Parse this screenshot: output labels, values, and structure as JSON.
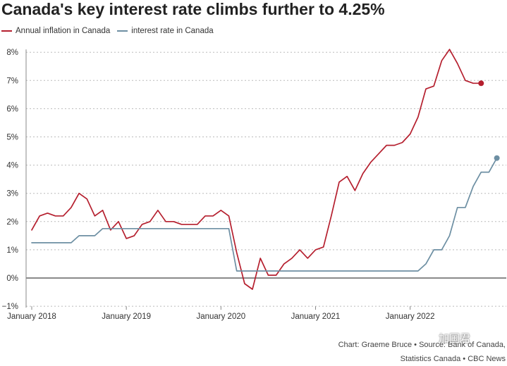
{
  "title": "Canada's key interest rate climbs further to 4.25%",
  "legend": [
    {
      "label": "Annual inflation in Canada",
      "color": "#b51f2e"
    },
    {
      "label": "interest rate in Canada",
      "color": "#6d8fa3"
    }
  ],
  "source": {
    "line1": "Chart: Graeme Bruce • Source: Bank of Canada,",
    "line2": "Statistics Canada • CBC News"
  },
  "watermark": "加国君",
  "chart_data": {
    "type": "line",
    "title": "Canada's key interest rate climbs further to 4.25%",
    "xlabel": "",
    "ylabel": "",
    "x_range": [
      "2018-01",
      "2022-12"
    ],
    "x_ticks": [
      "January 2018",
      "January 2019",
      "January 2020",
      "January 2021",
      "January 2022"
    ],
    "ylim": [
      -1,
      8
    ],
    "y_ticks": [
      "8%",
      "7%",
      "6%",
      "5%",
      "4%",
      "3%",
      "2%",
      "1%",
      "0%",
      "−1%"
    ],
    "grid": true,
    "legend_position": "top-left",
    "series": [
      {
        "name": "Annual inflation in Canada",
        "color": "#b51f2e",
        "end_marker": true,
        "x": [
          "2018-01",
          "2018-02",
          "2018-03",
          "2018-04",
          "2018-05",
          "2018-06",
          "2018-07",
          "2018-08",
          "2018-09",
          "2018-10",
          "2018-11",
          "2018-12",
          "2019-01",
          "2019-02",
          "2019-03",
          "2019-04",
          "2019-05",
          "2019-06",
          "2019-07",
          "2019-08",
          "2019-09",
          "2019-10",
          "2019-11",
          "2019-12",
          "2020-01",
          "2020-02",
          "2020-03",
          "2020-04",
          "2020-05",
          "2020-06",
          "2020-07",
          "2020-08",
          "2020-09",
          "2020-10",
          "2020-11",
          "2020-12",
          "2021-01",
          "2021-02",
          "2021-03",
          "2021-04",
          "2021-05",
          "2021-06",
          "2021-07",
          "2021-08",
          "2021-09",
          "2021-10",
          "2021-11",
          "2021-12",
          "2022-01",
          "2022-02",
          "2022-03",
          "2022-04",
          "2022-05",
          "2022-06",
          "2022-07",
          "2022-08",
          "2022-09",
          "2022-10"
        ],
        "values": [
          1.7,
          2.2,
          2.3,
          2.2,
          2.2,
          2.5,
          3.0,
          2.8,
          2.2,
          2.4,
          1.7,
          2.0,
          1.4,
          1.5,
          1.9,
          2.0,
          2.4,
          2.0,
          2.0,
          1.9,
          1.9,
          1.9,
          2.2,
          2.2,
          2.4,
          2.2,
          0.9,
          -0.2,
          -0.4,
          0.7,
          0.1,
          0.1,
          0.5,
          0.7,
          1.0,
          0.7,
          1.0,
          1.1,
          2.2,
          3.4,
          3.6,
          3.1,
          3.7,
          4.1,
          4.4,
          4.7,
          4.7,
          4.8,
          5.1,
          5.7,
          6.7,
          6.8,
          7.7,
          8.1,
          7.6,
          7.0,
          6.9,
          6.9
        ]
      },
      {
        "name": "interest rate in Canada",
        "color": "#6d8fa3",
        "end_marker": true,
        "x": [
          "2018-01",
          "2018-02",
          "2018-03",
          "2018-04",
          "2018-05",
          "2018-06",
          "2018-07",
          "2018-08",
          "2018-09",
          "2018-10",
          "2018-11",
          "2018-12",
          "2019-01",
          "2019-02",
          "2019-03",
          "2019-04",
          "2019-05",
          "2019-06",
          "2019-07",
          "2019-08",
          "2019-09",
          "2019-10",
          "2019-11",
          "2019-12",
          "2020-01",
          "2020-02",
          "2020-03",
          "2020-04",
          "2020-05",
          "2020-06",
          "2020-07",
          "2020-08",
          "2020-09",
          "2020-10",
          "2020-11",
          "2020-12",
          "2021-01",
          "2021-02",
          "2021-03",
          "2021-04",
          "2021-05",
          "2021-06",
          "2021-07",
          "2021-08",
          "2021-09",
          "2021-10",
          "2021-11",
          "2021-12",
          "2022-01",
          "2022-02",
          "2022-03",
          "2022-04",
          "2022-05",
          "2022-06",
          "2022-07",
          "2022-08",
          "2022-09",
          "2022-10",
          "2022-11",
          "2022-12"
        ],
        "values": [
          1.25,
          1.25,
          1.25,
          1.25,
          1.25,
          1.25,
          1.5,
          1.5,
          1.5,
          1.75,
          1.75,
          1.75,
          1.75,
          1.75,
          1.75,
          1.75,
          1.75,
          1.75,
          1.75,
          1.75,
          1.75,
          1.75,
          1.75,
          1.75,
          1.75,
          1.75,
          0.25,
          0.25,
          0.25,
          0.25,
          0.25,
          0.25,
          0.25,
          0.25,
          0.25,
          0.25,
          0.25,
          0.25,
          0.25,
          0.25,
          0.25,
          0.25,
          0.25,
          0.25,
          0.25,
          0.25,
          0.25,
          0.25,
          0.25,
          0.25,
          0.5,
          1.0,
          1.0,
          1.5,
          2.5,
          2.5,
          3.25,
          3.75,
          3.75,
          4.25
        ]
      }
    ]
  }
}
